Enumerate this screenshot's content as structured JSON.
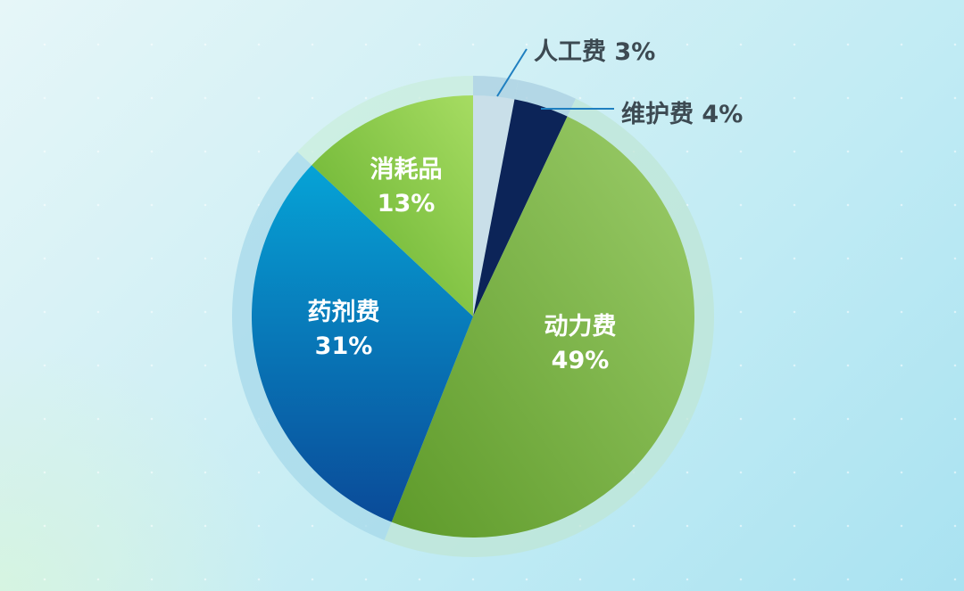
{
  "chart_data": {
    "type": "pie",
    "slices": [
      {
        "label": "人工费",
        "value": 3,
        "display": "3%",
        "color": "#c9dfe9",
        "halo": "#a9cfe0"
      },
      {
        "label": "维护费",
        "value": 4,
        "display": "4%",
        "color": "#0c2458",
        "halo": "#a9cfe0"
      },
      {
        "label": "动力费",
        "value": 49,
        "display": "49%",
        "color": "#78b140",
        "halo": "#bfe6d6"
      },
      {
        "label": "药剂费",
        "value": 31,
        "display": "31%",
        "color": "#0f73bd",
        "halo": "#a6d8ea"
      },
      {
        "label": "消耗品",
        "value": 13,
        "display": "13%",
        "color": "#8fcc4c",
        "halo": "#c9eedc"
      }
    ],
    "start_angle": "top",
    "direction": "clockwise",
    "legend": "none"
  }
}
